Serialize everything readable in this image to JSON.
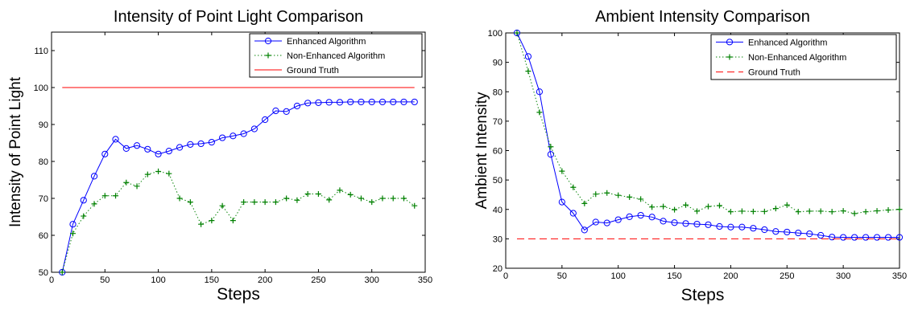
{
  "chart_data": [
    {
      "type": "line",
      "title": "Intensity of Point Light Comparison",
      "xlabel": "Steps",
      "ylabel": "Intensity of Point Light",
      "xlim": [
        0,
        350
      ],
      "ylim": [
        50,
        115
      ],
      "xticks": [
        0,
        50,
        100,
        150,
        200,
        250,
        300,
        350
      ],
      "yticks": [
        50,
        60,
        70,
        80,
        90,
        100,
        110
      ],
      "grid": false,
      "legend": "top-right",
      "series": [
        {
          "name": "Enhanced Algorithm",
          "style": "solid",
          "marker": "circle",
          "color": "#0000ff",
          "x": [
            10,
            20,
            30,
            40,
            50,
            60,
            70,
            80,
            90,
            100,
            110,
            120,
            130,
            140,
            150,
            160,
            170,
            180,
            190,
            200,
            210,
            220,
            230,
            240,
            250,
            260,
            270,
            280,
            290,
            300,
            310,
            320,
            330,
            340
          ],
          "y": [
            50,
            63,
            69.5,
            76,
            82,
            86,
            83.5,
            84.3,
            83.3,
            82,
            82.8,
            83.8,
            84.6,
            84.8,
            85.2,
            86.4,
            86.9,
            87.5,
            88.8,
            91.3,
            93.7,
            93.5,
            95,
            95.8,
            95.9,
            96,
            96,
            96.1,
            96.1,
            96.1,
            96.1,
            96.1,
            96.1,
            96.1
          ]
        },
        {
          "name": "Non-Enhanced Algorithm",
          "style": "dotted",
          "marker": "plus",
          "color": "#008000",
          "x": [
            10,
            20,
            30,
            40,
            50,
            60,
            70,
            80,
            90,
            100,
            110,
            120,
            130,
            140,
            150,
            160,
            170,
            180,
            190,
            200,
            210,
            220,
            230,
            240,
            250,
            260,
            270,
            280,
            290,
            300,
            310,
            320,
            330,
            340
          ],
          "y": [
            50,
            60.5,
            65.2,
            68.5,
            70.7,
            70.7,
            74.3,
            73.3,
            76.5,
            77.3,
            76.7,
            70,
            69,
            63,
            64,
            68,
            64,
            69,
            69,
            69,
            69,
            70,
            69.5,
            71.2,
            71.2,
            69.6,
            72.2,
            71,
            70,
            69,
            70,
            70,
            70,
            68
          ]
        },
        {
          "name": "Ground Truth",
          "style": "solid",
          "marker": "none",
          "color": "#ff0000",
          "x": [
            10,
            340
          ],
          "y": [
            100,
            100
          ]
        }
      ]
    },
    {
      "type": "line",
      "title": "Ambient Intensity Comparison",
      "xlabel": "Steps",
      "ylabel": "Ambient Intensity",
      "xlim": [
        0,
        350
      ],
      "ylim": [
        20,
        100
      ],
      "xticks": [
        0,
        50,
        100,
        150,
        200,
        250,
        300,
        350
      ],
      "yticks": [
        20,
        30,
        40,
        50,
        60,
        70,
        80,
        90,
        100
      ],
      "grid": false,
      "legend": "top-right",
      "series": [
        {
          "name": "Enhanced Algorithm",
          "style": "solid",
          "marker": "circle",
          "color": "#0000ff",
          "x": [
            10,
            20,
            30,
            40,
            50,
            60,
            70,
            80,
            90,
            100,
            110,
            120,
            130,
            140,
            150,
            160,
            170,
            180,
            190,
            200,
            210,
            220,
            230,
            240,
            250,
            260,
            270,
            280,
            290,
            300,
            310,
            320,
            330,
            340,
            350
          ],
          "y": [
            100,
            92,
            80,
            58.7,
            42.5,
            38.7,
            33,
            35.7,
            35.4,
            36.5,
            37.5,
            38,
            37.4,
            36,
            35.5,
            35.2,
            35,
            34.8,
            34.2,
            34,
            34,
            33.6,
            33.1,
            32.5,
            32.3,
            32,
            31.7,
            31.2,
            30.6,
            30.5,
            30.5,
            30.5,
            30.5,
            30.5,
            30.5
          ]
        },
        {
          "name": "Non-Enhanced Algorithm",
          "style": "dotted",
          "marker": "plus",
          "color": "#008000",
          "x": [
            10,
            20,
            30,
            40,
            50,
            60,
            70,
            80,
            90,
            100,
            110,
            120,
            130,
            140,
            150,
            160,
            170,
            180,
            190,
            200,
            210,
            220,
            230,
            240,
            250,
            260,
            270,
            280,
            290,
            300,
            310,
            320,
            330,
            340,
            350
          ],
          "y": [
            100,
            87,
            73,
            61.3,
            53,
            47.5,
            42,
            45.2,
            45.6,
            44.8,
            44.2,
            43.5,
            40.8,
            41,
            39.9,
            41.5,
            39.4,
            41,
            41.3,
            39.2,
            39.4,
            39.3,
            39.3,
            40.3,
            41.5,
            39.2,
            39.4,
            39.4,
            39.2,
            39.5,
            38.6,
            39.2,
            39.5,
            39.8,
            40
          ]
        },
        {
          "name": "Ground Truth",
          "style": "dashed",
          "marker": "none",
          "color": "#ff0000",
          "x": [
            10,
            350
          ],
          "y": [
            30,
            30
          ]
        }
      ]
    }
  ]
}
